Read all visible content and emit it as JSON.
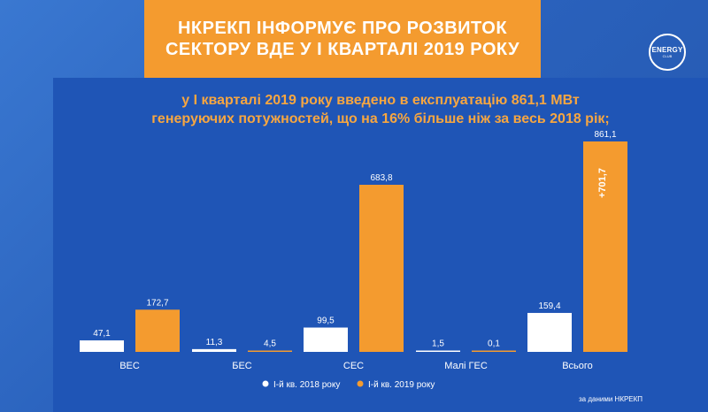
{
  "header": {
    "title_line1": "НКРЕКП ІНФОРМУЄ ПРО РОЗВИТОК",
    "title_line2": "СЕКТОРУ ВДЕ У І КВАРТАЛІ 2019 РОКУ"
  },
  "logo": {
    "main": "ENERGY",
    "sub": "CLUB"
  },
  "subtitle": {
    "line1": "у І кварталі 2019 року введено в експлуатацію 861,1 МВт",
    "line2": "генеруючих потужностей, що на 16% більше ніж за весь 2018 рік;"
  },
  "source": "за даними НКРЕКП",
  "colors": {
    "orange": "#f49b2f",
    "white_bar": "#ffffff",
    "panel": "#1f55b6"
  },
  "chart_data": {
    "type": "bar",
    "categories": [
      "ВЕС",
      "БЕС",
      "СЕС",
      "Малі ГЕС",
      "Всього"
    ],
    "series": [
      {
        "name": "І-й кв. 2018 року",
        "values": [
          47.1,
          11.3,
          99.5,
          1.5,
          159.4
        ],
        "labels": [
          "47,1",
          "11,3",
          "99,5",
          "1,5",
          "159,4"
        ],
        "color": "#ffffff"
      },
      {
        "name": "І-й кв. 2019 року",
        "values": [
          172.7,
          4.5,
          683.8,
          0.1,
          861.1
        ],
        "labels": [
          "172,7",
          "4,5",
          "683,8",
          "0,1",
          "861,1"
        ],
        "color": "#f49b2f"
      }
    ],
    "annotation": {
      "category": "Всього",
      "text": "+701,7"
    },
    "legend_position": "bottom",
    "ylim": [
      0,
      861.1
    ],
    "grid": false
  }
}
